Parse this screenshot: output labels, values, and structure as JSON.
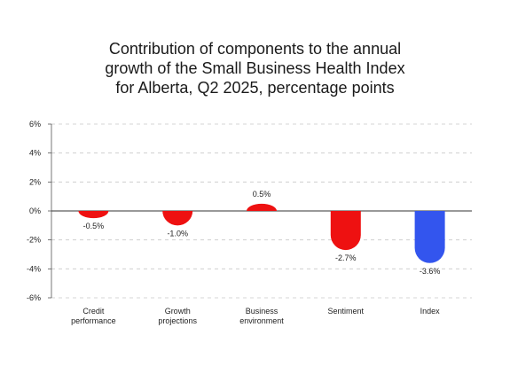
{
  "title_lines": [
    "Contribution of components to the annual",
    "growth of the Small Business Health Index",
    "for Alberta, Q2 2025, percentage points"
  ],
  "chart_data": {
    "type": "bar",
    "title": "Contribution of components to the annual growth of the Small Business Health Index for Alberta, Q2 2025, percentage points",
    "categories": [
      [
        "Credit",
        "performance"
      ],
      [
        "Growth",
        "projections"
      ],
      [
        "Business",
        "environment"
      ],
      [
        "Sentiment"
      ],
      [
        "Index"
      ]
    ],
    "values": [
      -0.5,
      -1.0,
      0.5,
      -2.7,
      -3.6
    ],
    "value_labels": [
      "-0.5%",
      "-1.0%",
      "0.5%",
      "-2.7%",
      "-3.6%"
    ],
    "bar_colors": [
      "#ee1111",
      "#ee1111",
      "#ee1111",
      "#ee1111",
      "#3355ee"
    ],
    "ylim": [
      -6,
      6
    ],
    "yticks": [
      6,
      4,
      2,
      0,
      -2,
      -4,
      -6
    ],
    "ytick_labels": [
      "6%",
      "4%",
      "2%",
      "0%",
      "-2%",
      "-4%",
      "-6%"
    ],
    "xlabel": "",
    "ylabel": "",
    "grid": true,
    "legend": "none"
  }
}
